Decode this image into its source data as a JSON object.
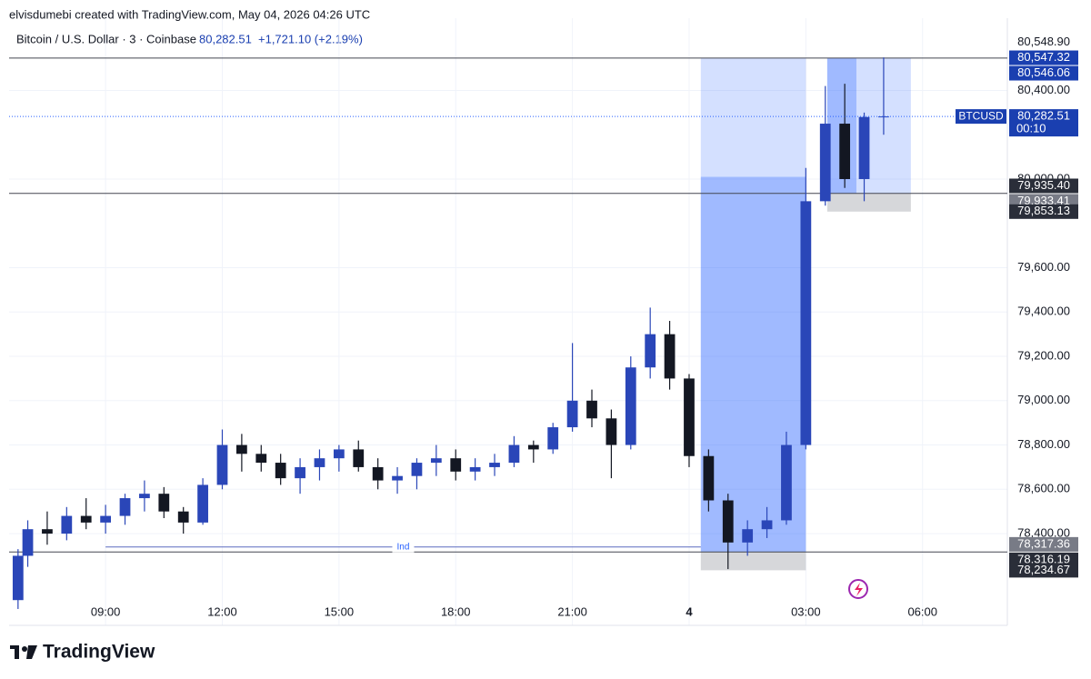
{
  "chart_data": {
    "type": "candlestick",
    "header": "elvisdumebi created with TradingView.com, May 04, 2026 04:26 UTC",
    "symbol": "Bitcoin / U.S. Dollar · 3 · Coinbase",
    "last": {
      "value": 80282.51,
      "label": "80,282.51"
    },
    "change": "+1,721.10 (+2.19%)",
    "ticker": "BTCUSD",
    "countdown": "00:10",
    "brand": "TradingView",
    "up_color": "#2a46b8",
    "down_color": "#131722",
    "grid": true,
    "xlim": [
      6.52,
      32.18
    ],
    "xticks": [
      {
        "value": 9,
        "label": "09:00"
      },
      {
        "value": 12,
        "label": "12:00"
      },
      {
        "value": 15,
        "label": "15:00"
      },
      {
        "value": 18,
        "label": "18:00"
      },
      {
        "value": 21,
        "label": "21:00"
      },
      {
        "value": 24,
        "label": "4"
      },
      {
        "value": 27,
        "label": "03:00"
      },
      {
        "value": 30,
        "label": "06:00"
      }
    ],
    "ylim": [
      77986,
      80726
    ],
    "yticks": [
      {
        "value": 78400,
        "label": "78,400.00"
      },
      {
        "value": 78600,
        "label": "78,600.00"
      },
      {
        "value": 78800,
        "label": "78,800.00"
      },
      {
        "value": 79000,
        "label": "79,000.00"
      },
      {
        "value": 79200,
        "label": "79,200.00"
      },
      {
        "value": 79400,
        "label": "79,400.00"
      },
      {
        "value": 79600,
        "label": "79,600.00"
      },
      {
        "value": 80000,
        "label": "80,000.00"
      },
      {
        "value": 80400,
        "label": "80,400.00"
      }
    ],
    "candles": {
      "t": [
        6.75,
        7.0,
        7.5,
        8.0,
        8.5,
        9.0,
        9.5,
        10.0,
        10.5,
        11.0,
        11.5,
        12.0,
        12.5,
        13.0,
        13.5,
        14.0,
        14.5,
        15.0,
        15.5,
        16.0,
        16.5,
        17.0,
        17.5,
        18.0,
        18.5,
        19.0,
        19.5,
        20.0,
        20.5,
        21.0,
        21.5,
        22.0,
        22.5,
        23.0,
        23.5,
        24.0,
        24.5,
        25.0,
        25.5,
        26.0,
        26.5,
        27.0,
        27.5,
        28.0,
        28.5,
        29.0
      ],
      "open": [
        78100,
        78300,
        78420,
        78400,
        78480,
        78450,
        78480,
        78560,
        78580,
        78500,
        78450,
        78620,
        78800,
        78760,
        78720,
        78650,
        78700,
        78740,
        78780,
        78700,
        78640,
        78660,
        78720,
        78740,
        78680,
        78700,
        78720,
        78800,
        78780,
        78880,
        79000,
        78920,
        78800,
        79150,
        79300,
        79100,
        78750,
        78550,
        78360,
        78420,
        78460,
        78800,
        79900,
        80250,
        80000,
        80280
      ],
      "high": [
        78330,
        78460,
        78500,
        78520,
        78560,
        78530,
        78580,
        78640,
        78610,
        78520,
        78650,
        78870,
        78850,
        78800,
        78760,
        78740,
        78780,
        78800,
        78820,
        78740,
        78700,
        78740,
        78800,
        78780,
        78740,
        78760,
        78840,
        78820,
        78900,
        79260,
        79050,
        78960,
        79200,
        79420,
        79360,
        79120,
        78780,
        78580,
        78460,
        78520,
        78860,
        80050,
        80420,
        80430,
        80300,
        80548.9
      ],
      "low": [
        78060,
        78250,
        78350,
        78370,
        78420,
        78400,
        78440,
        78500,
        78470,
        78400,
        78440,
        78600,
        78680,
        78680,
        78620,
        78580,
        78640,
        78680,
        78680,
        78600,
        78580,
        78600,
        78660,
        78640,
        78640,
        78660,
        78700,
        78720,
        78760,
        78860,
        78880,
        78650,
        78780,
        79100,
        79050,
        78700,
        78500,
        78240,
        78300,
        78380,
        78440,
        78780,
        79880,
        79960,
        79900,
        80200
      ],
      "close": [
        78300,
        78420,
        78400,
        78480,
        78450,
        78480,
        78560,
        78580,
        78500,
        78450,
        78620,
        78800,
        78760,
        78720,
        78650,
        78700,
        78740,
        78780,
        78700,
        78640,
        78660,
        78720,
        78740,
        78680,
        78700,
        78720,
        78800,
        78780,
        78880,
        79000,
        78920,
        78800,
        79150,
        79300,
        79100,
        78750,
        78550,
        78360,
        78420,
        78460,
        78800,
        79900,
        80250,
        80000,
        80280,
        80282.51
      ]
    },
    "hlines": [
      80546.06,
      79935.4,
      78317.36
    ],
    "annotation": {
      "text": "Ind",
      "value": 78340,
      "x0": 9,
      "x1": 24.3
    },
    "positions": [
      {
        "x0": 24.3,
        "x1": 27.0,
        "entry": 78317.36,
        "stop": 78234.67,
        "target": 80546.06,
        "fill_to": 80010,
        "fill_x1": 27.0
      },
      {
        "x0": 27.55,
        "x1": 29.7,
        "entry": 79935.4,
        "stop": 79853.13,
        "target": 80546.06,
        "fill_to": 80546.06,
        "fill_x1": 28.3
      }
    ],
    "price_labels": [
      {
        "value": 80548.9,
        "label": "80,548.90",
        "color": "#ffffff"
      },
      {
        "value": 80547.32,
        "label": "80,547.32",
        "color": "#1a3fb0"
      },
      {
        "value": 80546.06,
        "label": "80,546.06",
        "color": "#1a3fb0"
      },
      {
        "value": 79935.4,
        "label": "79,935.40",
        "color": "#2a2e39"
      },
      {
        "value": 79933.41,
        "label": "79,933.41",
        "color": "#787b86"
      },
      {
        "value": 79853.13,
        "label": "79,853.13",
        "color": "#2a2e39"
      },
      {
        "value": 78317.36,
        "label": "78,317.36",
        "color": "#787b86"
      },
      {
        "value": 78316.19,
        "label": "78,316.19",
        "color": "#2a2e39"
      },
      {
        "value": 78234.67,
        "label": "78,234.67",
        "color": "#2a2e39"
      }
    ]
  }
}
